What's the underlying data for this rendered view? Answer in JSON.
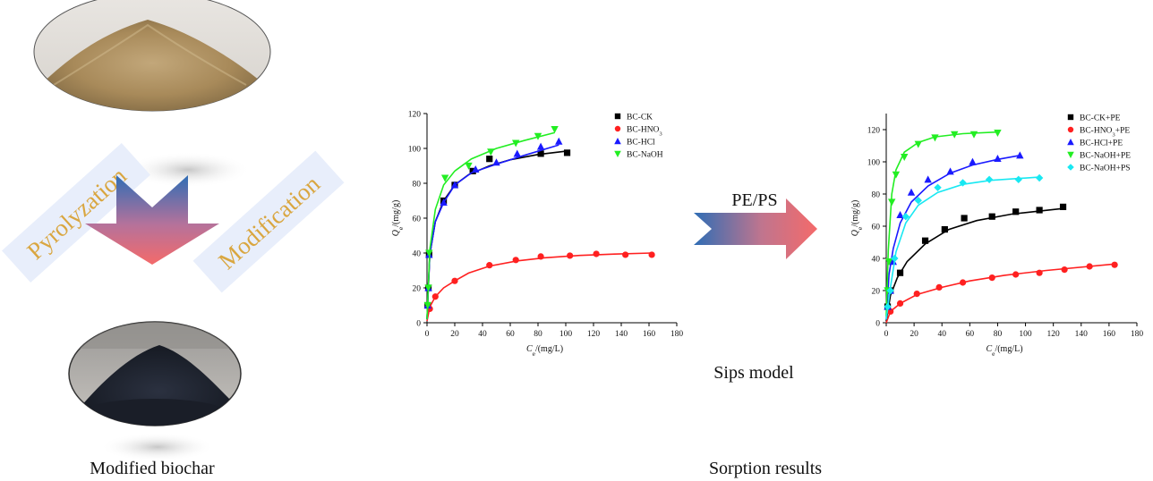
{
  "labels": {
    "pyrolyzation": "Pyrolyzation",
    "modification": "Modification",
    "modified_biochar": "Modified biochar",
    "pe_ps": "PE/PS",
    "sips_model": "Sips model",
    "sorption_results": "Sorption results"
  },
  "colors": {
    "BC-CK": "#000000",
    "BC-HNO3": "#ff2020",
    "BC-HCl": "#1a1aff",
    "BC-NaOH": "#22ee22",
    "BC-NaOH+PS": "#18e8f2",
    "arrow_top": "#2f6db5",
    "arrow_bottom": "#f46a6a",
    "label_text": "#d9a640",
    "label_band": "#e8eefb"
  },
  "chart_data": [
    {
      "type": "scatter",
      "xlabel": "C_e/(mg/L)",
      "ylabel": "Q_e/(mg/g)",
      "xlim": [
        0,
        180
      ],
      "ylim": [
        0,
        120
      ],
      "xticks": [
        0,
        20,
        40,
        60,
        80,
        100,
        120,
        140,
        160,
        180
      ],
      "yticks": [
        0,
        20,
        40,
        60,
        80,
        100,
        120
      ],
      "legend_position": "top-right",
      "series": [
        {
          "name": "BC-CK",
          "color": "#000000",
          "marker": "square",
          "points": [
            [
              0.5,
              10
            ],
            [
              1,
              20
            ],
            [
              1.5,
              39
            ],
            [
              12,
              70
            ],
            [
              20,
              79
            ],
            [
              33,
              87
            ],
            [
              45,
              94
            ],
            [
              82,
              97
            ],
            [
              101,
              97.5
            ]
          ],
          "fit": [
            [
              0,
              2
            ],
            [
              2,
              39
            ],
            [
              6,
              58
            ],
            [
              12,
              70
            ],
            [
              20,
              79
            ],
            [
              30,
              85
            ],
            [
              45,
              90
            ],
            [
              60,
              93.5
            ],
            [
              80,
              96.5
            ],
            [
              101,
              98.5
            ]
          ]
        },
        {
          "name": "BC-HNO3",
          "label_main": "BC-HNO",
          "label_sub": "3",
          "color": "#ff2020",
          "marker": "circle",
          "points": [
            [
              2,
              8
            ],
            [
              6,
              15
            ],
            [
              20,
              24
            ],
            [
              45,
              33
            ],
            [
              64,
              36
            ],
            [
              82,
              38
            ],
            [
              103,
              38.5
            ],
            [
              122,
              39.5
            ],
            [
              143,
              39
            ],
            [
              162,
              39
            ]
          ],
          "fit": [
            [
              0,
              1
            ],
            [
              2,
              9
            ],
            [
              6,
              15
            ],
            [
              12,
              20
            ],
            [
              20,
              24
            ],
            [
              30,
              28.5
            ],
            [
              45,
              32.5
            ],
            [
              65,
              35.5
            ],
            [
              85,
              37.3
            ],
            [
              110,
              38.6
            ],
            [
              135,
              39.4
            ],
            [
              162,
              40
            ]
          ]
        },
        {
          "name": "BC-HCl",
          "color": "#1a1aff",
          "marker": "triangle-up",
          "points": [
            [
              0.5,
              10
            ],
            [
              1,
              20
            ],
            [
              1.5,
              39
            ],
            [
              12,
              69
            ],
            [
              20,
              79
            ],
            [
              35,
              88
            ],
            [
              50,
              92
            ],
            [
              65,
              97
            ],
            [
              82,
              101
            ],
            [
              95,
              104
            ]
          ],
          "fit": [
            [
              0,
              2
            ],
            [
              2,
              39
            ],
            [
              6,
              58
            ],
            [
              12,
              69
            ],
            [
              20,
              79
            ],
            [
              32,
              86
            ],
            [
              50,
              91
            ],
            [
              70,
              96
            ],
            [
              95,
              102
            ]
          ]
        },
        {
          "name": "BC-NaOH",
          "color": "#22ee22",
          "marker": "triangle-down",
          "points": [
            [
              0.5,
              10
            ],
            [
              1,
              20
            ],
            [
              1.5,
              40
            ],
            [
              13,
              83
            ],
            [
              30,
              90
            ],
            [
              46,
              98
            ],
            [
              64,
              103
            ],
            [
              80,
              107
            ],
            [
              92,
              111
            ]
          ],
          "fit": [
            [
              0,
              2
            ],
            [
              2,
              42
            ],
            [
              6,
              65
            ],
            [
              12,
              79
            ],
            [
              20,
              87
            ],
            [
              32,
              94
            ],
            [
              50,
              100
            ],
            [
              70,
              104.5
            ],
            [
              92,
              109
            ]
          ]
        }
      ]
    },
    {
      "type": "scatter",
      "xlabel": "C_e/(mg/L)",
      "ylabel": "Q_e/(mg/g)",
      "xlim": [
        0,
        180
      ],
      "ylim": [
        0,
        130
      ],
      "xticks": [
        0,
        20,
        40,
        60,
        80,
        100,
        120,
        140,
        160,
        180
      ],
      "yticks": [
        0,
        20,
        40,
        60,
        80,
        100,
        120
      ],
      "legend_position": "top-right",
      "series": [
        {
          "name": "BC-CK+PE",
          "color": "#000000",
          "marker": "square",
          "points": [
            [
              1,
              10
            ],
            [
              3,
              20
            ],
            [
              10,
              31
            ],
            [
              28,
              51
            ],
            [
              42,
              58
            ],
            [
              56,
              65
            ],
            [
              76,
              66
            ],
            [
              93,
              69
            ],
            [
              110,
              70
            ],
            [
              127,
              72
            ]
          ],
          "fit": [
            [
              0,
              1
            ],
            [
              3,
              17
            ],
            [
              8,
              28
            ],
            [
              15,
              38
            ],
            [
              28,
              49
            ],
            [
              45,
              58
            ],
            [
              65,
              63.5
            ],
            [
              90,
              67.5
            ],
            [
              127,
              71
            ]
          ]
        },
        {
          "name": "BC-HNO3+PE",
          "label_main": "BC-HNO",
          "label_sub": "3",
          "label_suffix": "+PE",
          "color": "#ff2020",
          "marker": "circle",
          "points": [
            [
              3,
              7
            ],
            [
              10,
              12
            ],
            [
              22,
              18
            ],
            [
              38,
              22
            ],
            [
              55,
              25
            ],
            [
              76,
              28
            ],
            [
              93,
              30
            ],
            [
              110,
              31
            ],
            [
              128,
              33
            ],
            [
              146,
              35
            ],
            [
              164,
              36
            ]
          ],
          "fit": [
            [
              0,
              0
            ],
            [
              3,
              7
            ],
            [
              10,
              12
            ],
            [
              22,
              17.5
            ],
            [
              40,
              22
            ],
            [
              60,
              26
            ],
            [
              85,
              29.5
            ],
            [
              115,
              32.5
            ],
            [
              164,
              36.5
            ]
          ]
        },
        {
          "name": "BC-HCl+PE",
          "color": "#1a1aff",
          "marker": "triangle-up",
          "points": [
            [
              1,
              10
            ],
            [
              3,
              20
            ],
            [
              5,
              38
            ],
            [
              10,
              67
            ],
            [
              18,
              81
            ],
            [
              30,
              89
            ],
            [
              46,
              94
            ],
            [
              62,
              100
            ],
            [
              80,
              102
            ],
            [
              96,
              104
            ]
          ],
          "fit": [
            [
              0,
              2
            ],
            [
              2,
              30
            ],
            [
              5,
              46
            ],
            [
              10,
              62
            ],
            [
              18,
              75
            ],
            [
              30,
              85
            ],
            [
              46,
              93
            ],
            [
              62,
              98
            ],
            [
              80,
              101.5
            ],
            [
              96,
              104
            ]
          ]
        },
        {
          "name": "BC-NaOH+PE",
          "color": "#22ee22",
          "marker": "triangle-down",
          "points": [
            [
              1,
              20
            ],
            [
              2,
              38
            ],
            [
              4,
              75
            ],
            [
              7,
              92
            ],
            [
              13,
              103
            ],
            [
              23,
              111
            ],
            [
              35,
              115
            ],
            [
              49,
              117
            ],
            [
              63,
              117
            ],
            [
              80,
              118
            ]
          ],
          "fit": [
            [
              0,
              4
            ],
            [
              1.5,
              45
            ],
            [
              4,
              80
            ],
            [
              7,
              95
            ],
            [
              13,
              106
            ],
            [
              23,
              112
            ],
            [
              35,
              115.5
            ],
            [
              55,
              117.5
            ],
            [
              80,
              118.5
            ]
          ]
        },
        {
          "name": "BC-NaOH+PS",
          "color": "#18e8f2",
          "marker": "diamond",
          "points": [
            [
              1,
              10
            ],
            [
              3,
              20
            ],
            [
              6,
              40
            ],
            [
              14,
              66
            ],
            [
              23,
              76
            ],
            [
              37,
              84
            ],
            [
              55,
              87
            ],
            [
              74,
              89
            ],
            [
              95,
              89
            ],
            [
              110,
              90
            ]
          ],
          "fit": [
            [
              0,
              2
            ],
            [
              3,
              22
            ],
            [
              7,
              44
            ],
            [
              14,
              62
            ],
            [
              23,
              73
            ],
            [
              37,
              81
            ],
            [
              55,
              86
            ],
            [
              75,
              88.5
            ],
            [
              110,
              90.5
            ]
          ]
        }
      ]
    }
  ]
}
